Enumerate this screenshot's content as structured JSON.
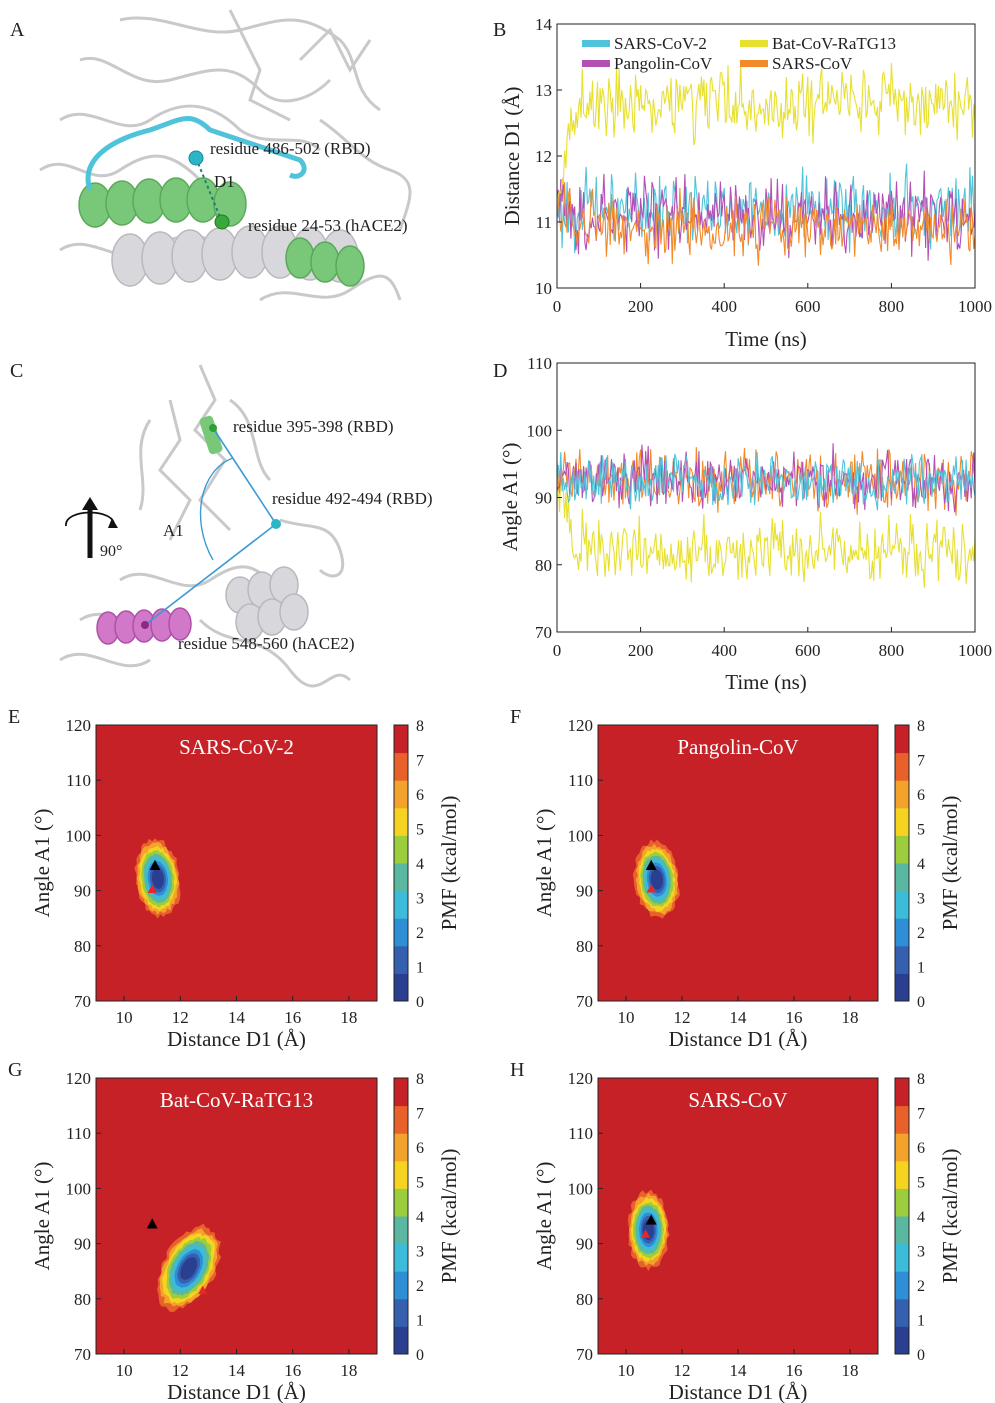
{
  "panels": {
    "A": {
      "letter": "A",
      "labels": [
        "residue 486-502 (RBD)",
        "D1",
        "residue 24-53 (hACE2)"
      ]
    },
    "C": {
      "letter": "C",
      "labels": [
        "residue 395-398 (RBD)",
        "residue 492-494 (RBD)",
        "A1",
        "90°",
        "residue 548-560 (hACE2)"
      ]
    }
  },
  "colors": {
    "SARS-CoV-2": "#4fc3d9",
    "Bat-CoV-RaTG13": "#e8e030",
    "Pangolin-CoV": "#b44fb4",
    "SARS-CoV": "#f28a2a",
    "pmf_scale": [
      "#2a3f8f",
      "#3560b0",
      "#2e8fd6",
      "#3cbcd8",
      "#5ab8a0",
      "#9bcd3c",
      "#f5d320",
      "#f3a22c",
      "#e8602a",
      "#c62127"
    ],
    "min_marker": "#000000",
    "alt_marker": "#e8262a"
  },
  "chart_data": [
    {
      "panel": "B",
      "type": "line",
      "xlabel": "Time (ns)",
      "ylabel": "Distance D1 (Å)",
      "xlim": [
        0,
        1000
      ],
      "ylim": [
        10,
        14
      ],
      "xticks": [
        "0",
        "200",
        "400",
        "600",
        "800",
        "1000"
      ],
      "yticks": [
        "10",
        "11",
        "12",
        "13",
        "14"
      ],
      "legend": [
        "SARS-CoV-2",
        "Bat-CoV-RaTG13",
        "Pangolin-CoV",
        "SARS-CoV"
      ],
      "legend_position": "top",
      "series": [
        {
          "name": "SARS-CoV-2",
          "mean": 11.2,
          "spread": 0.35
        },
        {
          "name": "Pangolin-CoV",
          "mean": 11.1,
          "spread": 0.35
        },
        {
          "name": "SARS-CoV",
          "mean": 10.9,
          "spread": 0.3
        },
        {
          "name": "Bat-CoV-RaTG13",
          "mean": 12.8,
          "spread": 0.35
        }
      ]
    },
    {
      "panel": "D",
      "type": "line",
      "xlabel": "Time (ns)",
      "ylabel": "Angle A1 (°)",
      "xlim": [
        0,
        1000
      ],
      "ylim": [
        70,
        110
      ],
      "xticks": [
        "0",
        "200",
        "400",
        "600",
        "800",
        "1000"
      ],
      "yticks": [
        "70",
        "80",
        "90",
        "100",
        "110"
      ],
      "series": [
        {
          "name": "Bat-CoV-RaTG13",
          "mean": 82,
          "spread": 3.2
        },
        {
          "name": "SARS-CoV",
          "mean": 92.5,
          "spread": 2.8
        },
        {
          "name": "Pangolin-CoV",
          "mean": 92.5,
          "spread": 2.8
        },
        {
          "name": "SARS-CoV-2",
          "mean": 92.5,
          "spread": 2.5
        }
      ]
    },
    {
      "panel": "E",
      "type": "heatmap",
      "title": "SARS-CoV-2",
      "xlabel": "Distance D1 (Å)",
      "ylabel": "Angle A1 (°)",
      "colorbar_label": "PMF (kcal/mol)",
      "xlim": [
        9,
        19
      ],
      "ylim": [
        70,
        120
      ],
      "xticks": [
        "10",
        "12",
        "14",
        "16",
        "18"
      ],
      "yticks": [
        "70",
        "80",
        "90",
        "100",
        "110",
        "120"
      ],
      "cticks": [
        "0",
        "1",
        "2",
        "3",
        "4",
        "5",
        "6",
        "7",
        "8"
      ],
      "min_black": [
        11.1,
        94.5
      ],
      "min_red": [
        11.0,
        90.2
      ],
      "basin": {
        "cx": 11.2,
        "cy": 92.2,
        "rx": 0.75,
        "ry": 7.3,
        "tilt": -0.12
      }
    },
    {
      "panel": "F",
      "type": "heatmap",
      "title": "Pangolin-CoV",
      "xlabel": "Distance D1 (Å)",
      "ylabel": "Angle A1 (°)",
      "colorbar_label": "PMF (kcal/mol)",
      "xlim": [
        9,
        19
      ],
      "ylim": [
        70,
        120
      ],
      "xticks": [
        "10",
        "12",
        "14",
        "16",
        "18"
      ],
      "yticks": [
        "70",
        "80",
        "90",
        "100",
        "110",
        "120"
      ],
      "cticks": [
        "0",
        "1",
        "2",
        "3",
        "4",
        "5",
        "6",
        "7",
        "8"
      ],
      "min_black": [
        10.9,
        94.5
      ],
      "min_red": [
        10.9,
        90.3
      ],
      "basin": {
        "cx": 11.1,
        "cy": 92.0,
        "rx": 0.75,
        "ry": 7.2,
        "tilt": -0.12
      }
    },
    {
      "panel": "G",
      "type": "heatmap",
      "title": "Bat-CoV-RaTG13",
      "xlabel": "Distance D1 (Å)",
      "ylabel": "Angle A1 (°)",
      "colorbar_label": "PMF (kcal/mol)",
      "xlim": [
        9,
        19
      ],
      "ylim": [
        70,
        120
      ],
      "xticks": [
        "10",
        "12",
        "14",
        "16",
        "18"
      ],
      "yticks": [
        "70",
        "80",
        "90",
        "100",
        "110",
        "120"
      ],
      "cticks": [
        "0",
        "1",
        "2",
        "3",
        "4",
        "5",
        "6",
        "7",
        "8"
      ],
      "min_black": [
        11.0,
        93.5
      ],
      "min_red": [
        12.8,
        81.5
      ],
      "basin": {
        "cx": 12.3,
        "cy": 85.5,
        "rx": 0.95,
        "ry": 8.0,
        "tilt": 0.55
      }
    },
    {
      "panel": "H",
      "type": "heatmap",
      "title": "SARS-CoV",
      "xlabel": "Distance D1 (Å)",
      "ylabel": "Angle A1 (°)",
      "colorbar_label": "PMF (kcal/mol)",
      "xlim": [
        9,
        19
      ],
      "ylim": [
        70,
        120
      ],
      "xticks": [
        "10",
        "12",
        "14",
        "16",
        "18"
      ],
      "yticks": [
        "70",
        "80",
        "90",
        "100",
        "110",
        "120"
      ],
      "cticks": [
        "0",
        "1",
        "2",
        "3",
        "4",
        "5",
        "6",
        "7",
        "8"
      ],
      "min_black": [
        10.9,
        94.2
      ],
      "min_red": [
        10.7,
        91.7
      ],
      "basin": {
        "cx": 10.8,
        "cy": 92.5,
        "rx": 0.7,
        "ry": 7.3,
        "tilt": 0.0
      }
    }
  ]
}
